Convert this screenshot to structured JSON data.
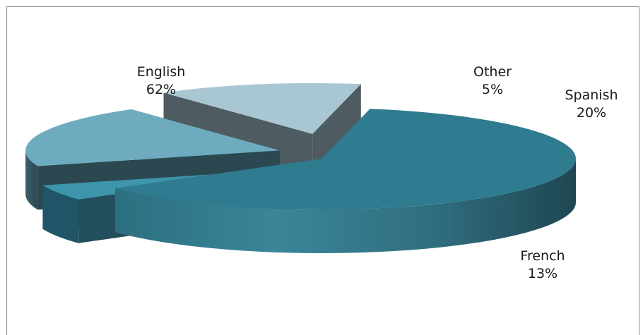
{
  "chart_data": {
    "type": "pie",
    "title": "",
    "legend": "none",
    "categories": [
      "English",
      "Other",
      "Spanish",
      "French"
    ],
    "values": [
      62,
      5,
      20,
      13
    ],
    "value_labels": [
      "62%",
      "5%",
      "20%",
      "13%"
    ],
    "colors": [
      "#2f7b8f",
      "#3c95aa",
      "#6eabbe",
      "#a9c7d2"
    ],
    "exploded": true,
    "three_d": true
  }
}
